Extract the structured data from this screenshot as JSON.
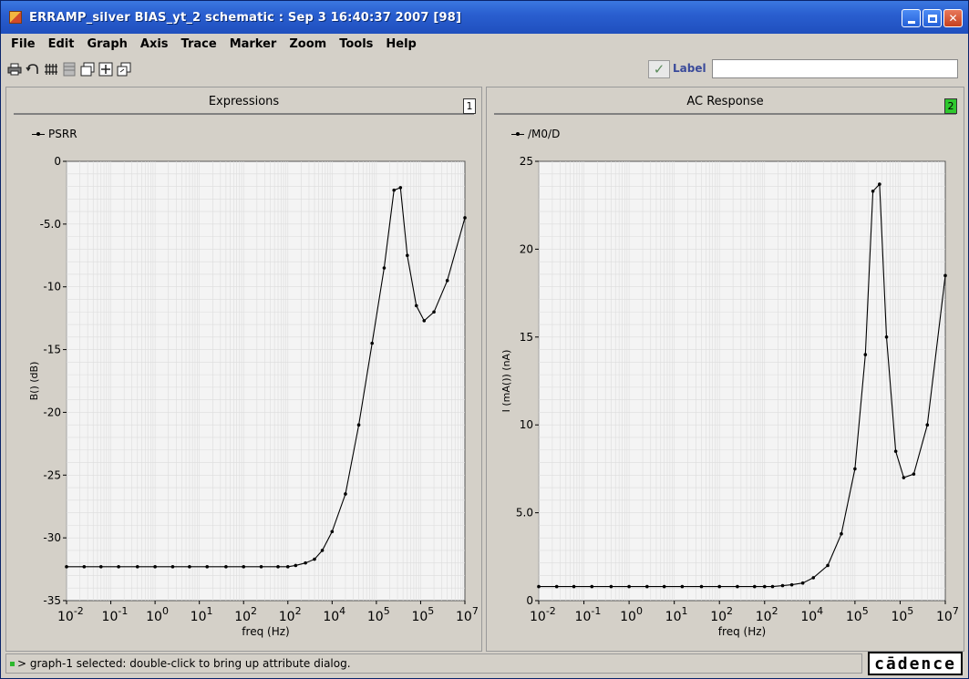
{
  "window": {
    "title": "ERRAMP_silver BIAS_yt_2 schematic : Sep  3 16:40:37 2007 [98]"
  },
  "menu": [
    "File",
    "Edit",
    "Graph",
    "Axis",
    "Trace",
    "Marker",
    "Zoom",
    "Tools",
    "Help"
  ],
  "toolbar": {
    "icons": [
      "printer-icon",
      "undo-icon",
      "grid-icon",
      "strip-icon",
      "subwindow-icon",
      "zoom-fit-icon",
      "copy-window-icon"
    ],
    "label_text": "Label",
    "label_value": ""
  },
  "panels": [
    {
      "title": "Expressions",
      "number": "1",
      "legend": "PSRR"
    },
    {
      "title": "AC Response",
      "number": "2",
      "legend": "/M0/D"
    }
  ],
  "status": {
    "message": "> graph-1 selected: double-click to bring up attribute dialog.",
    "logo": "cādence"
  },
  "colors": {
    "active_panel": "#2ec82e",
    "title_bar": "#2a5fd0"
  },
  "chart_data": [
    {
      "type": "line",
      "title": "Expressions",
      "xlabel": "freq (Hz)",
      "ylabel": "B() (dB)",
      "xscale": "log",
      "xlim": [
        0.01,
        10000000
      ],
      "ylim": [
        -35,
        0
      ],
      "xticks": [
        "-2",
        "-1",
        "0",
        "1",
        "2",
        "2",
        "4",
        "5",
        "5",
        "7"
      ],
      "yticks": [
        "0",
        "-5.0",
        "-10",
        "-15",
        "-20",
        "-25",
        "-30",
        "-35"
      ],
      "grid": true,
      "series": [
        {
          "name": "PSRR",
          "x": [
            0.01,
            0.025,
            0.06,
            0.15,
            0.4,
            1,
            2.5,
            6,
            15,
            40,
            100,
            250,
            600,
            1000,
            1500,
            2500,
            4000,
            6000,
            10000,
            20000,
            40000,
            80000,
            150000,
            250000,
            350000,
            500000,
            800000,
            1200000,
            2000000,
            4000000,
            10000000
          ],
          "y": [
            -32.3,
            -32.3,
            -32.3,
            -32.3,
            -32.3,
            -32.3,
            -32.3,
            -32.3,
            -32.3,
            -32.3,
            -32.3,
            -32.3,
            -32.3,
            -32.3,
            -32.2,
            -32.0,
            -31.7,
            -31.0,
            -29.5,
            -26.5,
            -21.0,
            -14.5,
            -8.5,
            -2.3,
            -2.1,
            -7.5,
            -11.5,
            -12.7,
            -12.0,
            -9.5,
            -4.5
          ]
        }
      ]
    },
    {
      "type": "line",
      "title": "AC Response",
      "xlabel": "freq (Hz)",
      "ylabel": "I (mA()) (nA)",
      "xscale": "log",
      "xlim": [
        0.01,
        10000000
      ],
      "ylim": [
        0,
        25
      ],
      "xticks": [
        "-2",
        "-1",
        "0",
        "1",
        "2",
        "2",
        "4",
        "5",
        "5",
        "7"
      ],
      "yticks": [
        "25",
        "20",
        "15",
        "10",
        "5.0",
        "0"
      ],
      "grid": true,
      "series": [
        {
          "name": "/M0/D",
          "x": [
            0.01,
            0.025,
            0.06,
            0.15,
            0.4,
            1,
            2.5,
            6,
            15,
            40,
            100,
            250,
            600,
            1000,
            1500,
            2500,
            4000,
            7000,
            12000,
            25000,
            50000,
            100000,
            170000,
            250000,
            350000,
            500000,
            800000,
            1200000,
            2000000,
            4000000,
            10000000
          ],
          "y": [
            0.8,
            0.8,
            0.8,
            0.8,
            0.8,
            0.8,
            0.8,
            0.8,
            0.8,
            0.8,
            0.8,
            0.8,
            0.8,
            0.8,
            0.8,
            0.85,
            0.9,
            1.0,
            1.3,
            2.0,
            3.8,
            7.5,
            14.0,
            23.3,
            23.7,
            15.0,
            8.5,
            7.0,
            7.2,
            10.0,
            18.5
          ]
        }
      ]
    }
  ]
}
